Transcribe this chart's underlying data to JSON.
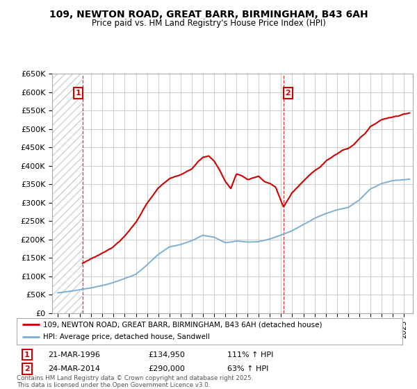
{
  "title": "109, NEWTON ROAD, GREAT BARR, BIRMINGHAM, B43 6AH",
  "subtitle": "Price paid vs. HM Land Registry's House Price Index (HPI)",
  "ylim": [
    0,
    650000
  ],
  "yticks": [
    0,
    50000,
    100000,
    150000,
    200000,
    250000,
    300000,
    350000,
    400000,
    450000,
    500000,
    550000,
    600000,
    650000
  ],
  "ytick_labels": [
    "£0",
    "£50K",
    "£100K",
    "£150K",
    "£200K",
    "£250K",
    "£300K",
    "£350K",
    "£400K",
    "£450K",
    "£500K",
    "£550K",
    "£600K",
    "£650K"
  ],
  "xlim_start": 1993.5,
  "xlim_end": 2025.8,
  "purchase1_year": 1996.22,
  "purchase1_price": 134950,
  "purchase2_year": 2014.22,
  "purchase2_price": 290000,
  "line1_color": "#cc0000",
  "line2_color": "#7bafd4",
  "annotation_box_color": "#cc0000",
  "legend_line1": "109, NEWTON ROAD, GREAT BARR, BIRMINGHAM, B43 6AH (detached house)",
  "legend_line2": "HPI: Average price, detached house, Sandwell",
  "note1_label": "1",
  "note1_date": "21-MAR-1996",
  "note1_price": "£134,950",
  "note1_hpi": "111% ↑ HPI",
  "note2_label": "2",
  "note2_date": "24-MAR-2014",
  "note2_price": "£290,000",
  "note2_hpi": "63% ↑ HPI",
  "footer": "Contains HM Land Registry data © Crown copyright and database right 2025.\nThis data is licensed under the Open Government Licence v3.0.",
  "background_color": "#ffffff",
  "grid_color": "#cccccc"
}
